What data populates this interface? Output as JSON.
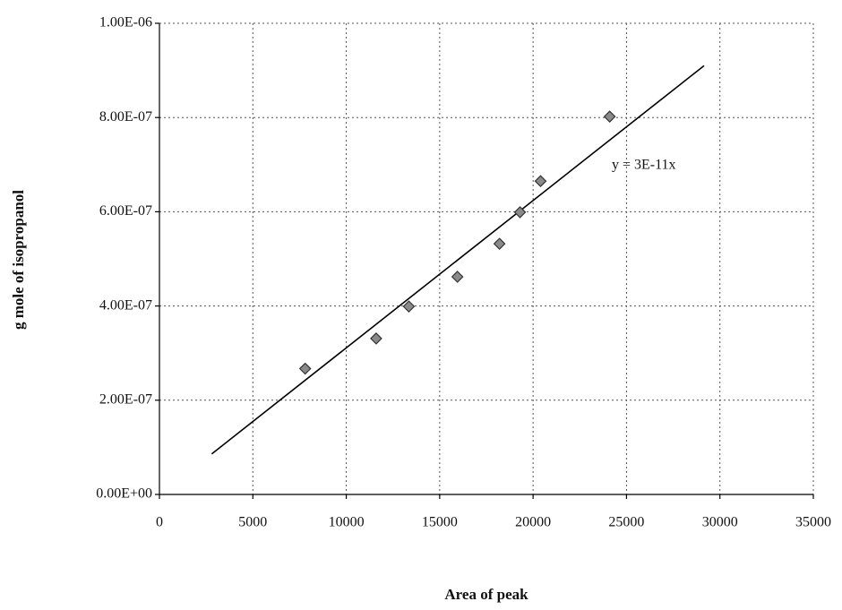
{
  "chart_data": {
    "type": "scatter",
    "x_label": "Area of peak",
    "y_label": "g mole of isopropanol",
    "x": [
      7800,
      11600,
      13350,
      15950,
      18200,
      19300,
      20400,
      24100
    ],
    "values": [
      2.67e-07,
      3.31e-07,
      3.99e-07,
      4.62e-07,
      5.32e-07,
      5.99e-07,
      6.65e-07,
      8.02e-07
    ],
    "color": "#8a8a8a",
    "trendline": {
      "x": [
        2800,
        29150
      ],
      "y": [
        8.6e-08,
        9.1e-07
      ],
      "label": "y = 3E-11x",
      "color": "#000000"
    },
    "xlim": [
      0,
      35000
    ],
    "xticks": [
      0,
      5000,
      10000,
      15000,
      20000,
      25000,
      30000,
      35000
    ],
    "ylim": [
      0,
      1e-06
    ],
    "yticks": [
      {
        "value": 0,
        "label": "0.00E+00"
      },
      {
        "value": 2e-07,
        "label": "2.00E-07"
      },
      {
        "value": 4e-07,
        "label": "4.00E-07"
      },
      {
        "value": 6e-07,
        "label": "6.00E-07"
      },
      {
        "value": 8e-07,
        "label": "8.00E-07"
      },
      {
        "value": 1e-06,
        "label": "1.00E-06"
      }
    ],
    "grid": true
  }
}
